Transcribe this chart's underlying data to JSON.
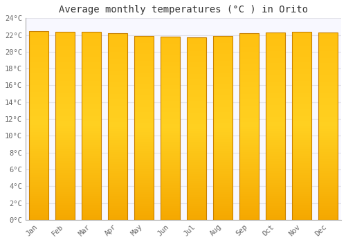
{
  "title": "Average monthly temperatures (°C ) in Orito",
  "months": [
    "Jan",
    "Feb",
    "Mar",
    "Apr",
    "May",
    "Jun",
    "Jul",
    "Aug",
    "Sep",
    "Oct",
    "Nov",
    "Dec"
  ],
  "values": [
    22.5,
    22.4,
    22.4,
    22.2,
    21.9,
    21.8,
    21.7,
    21.9,
    22.2,
    22.3,
    22.4,
    22.3
  ],
  "ylim": [
    0,
    24
  ],
  "yticks": [
    0,
    2,
    4,
    6,
    8,
    10,
    12,
    14,
    16,
    18,
    20,
    22,
    24
  ],
  "bar_color_bottom": "#F5A800",
  "bar_color_top": "#FFD700",
  "bar_color_center": "#FFB800",
  "bar_edge_color": "#C88000",
  "background_color": "#FFFFFF",
  "plot_bg_color": "#F8F8FF",
  "grid_color": "#E0E0E8",
  "title_fontsize": 10,
  "tick_fontsize": 7.5,
  "font_family": "monospace"
}
